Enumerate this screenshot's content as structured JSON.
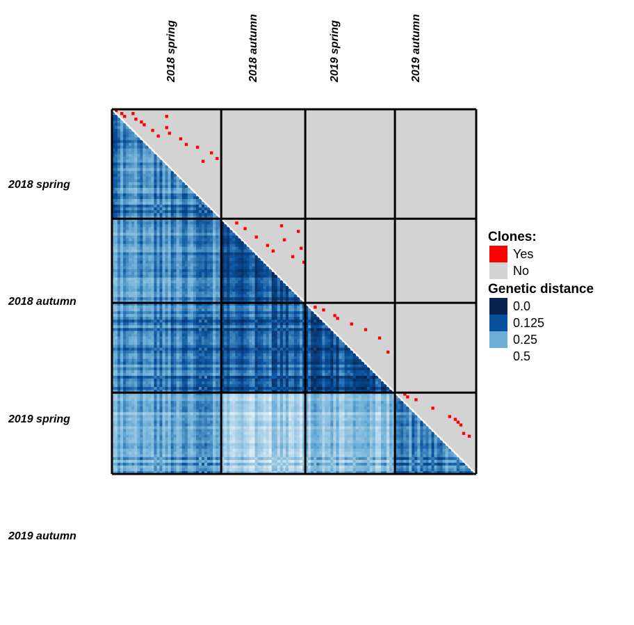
{
  "chart_data": {
    "type": "heatmap",
    "title": "",
    "groups": [
      "2018 spring",
      "2018 autumn",
      "2019 spring",
      "2019 autumn"
    ],
    "group_sizes": [
      39,
      30,
      32,
      29
    ],
    "lower_triangle": "Genetic distance",
    "upper_triangle": "Clones",
    "legend": {
      "placement": "right",
      "clones_title": "Clones:",
      "clones_entries": [
        {
          "label": "Yes",
          "color": "#ff0000"
        },
        {
          "label": "No",
          "color": "#d3d3d3"
        }
      ],
      "distance_title": "Genetic distance",
      "distance_entries": [
        {
          "label": "0.0",
          "value": 0.0,
          "color": "#08234f"
        },
        {
          "label": "0.125",
          "value": 0.125,
          "color": "#08519c"
        },
        {
          "label": "0.25",
          "value": 0.25,
          "color": "#6baed6"
        },
        {
          "label": "0.5",
          "value": 0.5,
          "color": "#ffffff"
        }
      ]
    },
    "block_mean_distance": [
      [
        0.22,
        0.23,
        0.21,
        0.27
      ],
      [
        0.23,
        0.12,
        0.16,
        0.37
      ],
      [
        0.21,
        0.16,
        0.14,
        0.33
      ],
      [
        0.27,
        0.37,
        0.33,
        0.22
      ]
    ],
    "clone_pairs": [
      [
        0,
        1
      ],
      [
        1,
        3
      ],
      [
        1,
        7
      ],
      [
        2,
        4
      ],
      [
        3,
        8
      ],
      [
        4,
        10
      ],
      [
        5,
        11
      ],
      [
        2,
        19
      ],
      [
        6,
        19
      ],
      [
        7,
        14
      ],
      [
        8,
        20
      ],
      [
        9,
        16
      ],
      [
        10,
        24
      ],
      [
        12,
        26
      ],
      [
        13,
        30
      ],
      [
        15,
        35
      ],
      [
        17,
        37
      ],
      [
        18,
        32
      ],
      [
        40,
        44
      ],
      [
        42,
        47
      ],
      [
        45,
        51
      ],
      [
        48,
        55
      ],
      [
        50,
        57
      ],
      [
        41,
        60
      ],
      [
        46,
        61
      ],
      [
        52,
        64
      ],
      [
        43,
        66
      ],
      [
        49,
        67
      ],
      [
        54,
        68
      ],
      [
        70,
        72
      ],
      [
        71,
        75
      ],
      [
        73,
        79
      ],
      [
        74,
        80
      ],
      [
        76,
        85
      ],
      [
        78,
        90
      ],
      [
        81,
        95
      ],
      [
        86,
        98
      ],
      [
        101,
        104
      ],
      [
        102,
        105
      ],
      [
        103,
        108
      ],
      [
        106,
        114
      ],
      [
        109,
        120
      ],
      [
        110,
        122
      ],
      [
        111,
        123
      ],
      [
        112,
        124
      ],
      [
        115,
        125
      ],
      [
        116,
        127
      ]
    ]
  }
}
